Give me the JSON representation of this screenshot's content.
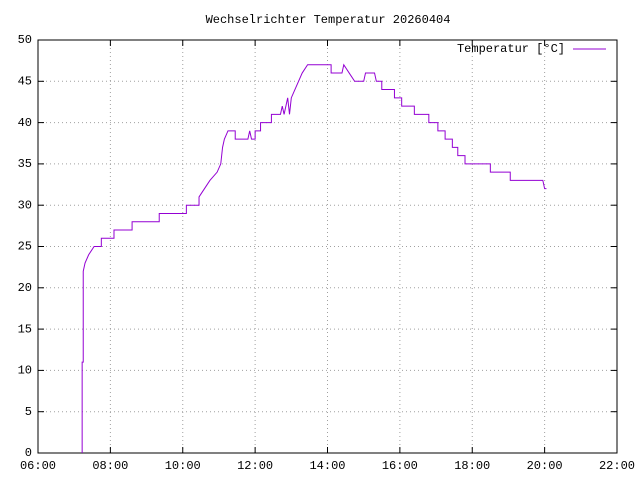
{
  "chart_data": {
    "type": "line",
    "title": "Wechselrichter Temperatur 20260404",
    "x": [
      7.22,
      7.22,
      7.25,
      7.25,
      7.3,
      7.4,
      7.55,
      7.75,
      7.75,
      8.1,
      8.1,
      8.6,
      8.6,
      9.35,
      9.35,
      10.1,
      10.1,
      10.45,
      10.45,
      10.6,
      10.75,
      10.95,
      11.05,
      11.1,
      11.15,
      11.25,
      11.45,
      11.45,
      11.8,
      11.85,
      11.9,
      12.0,
      12.0,
      12.15,
      12.15,
      12.45,
      12.45,
      12.7,
      12.75,
      12.8,
      12.9,
      12.95,
      13.0,
      13.1,
      13.2,
      13.3,
      13.45,
      14.1,
      14.1,
      14.4,
      14.45,
      14.6,
      14.75,
      15.0,
      15.05,
      15.3,
      15.35,
      15.5,
      15.5,
      15.85,
      15.85,
      16.05,
      16.05,
      16.4,
      16.4,
      16.8,
      16.8,
      17.05,
      17.05,
      17.25,
      17.25,
      17.45,
      17.45,
      17.6,
      17.6,
      17.8,
      17.8,
      18.5,
      18.5,
      19.05,
      19.05,
      19.95,
      20.0,
      20.05
    ],
    "series": [
      {
        "name": "Temperatur [°C]",
        "color": "#9400d3",
        "values": [
          0,
          11,
          11,
          22,
          23,
          24,
          25,
          25,
          26,
          26,
          27,
          27,
          28,
          28,
          29,
          29,
          30,
          30,
          31,
          32,
          33,
          34,
          35,
          37,
          38,
          39,
          39,
          38,
          38,
          39,
          38,
          38,
          39,
          39,
          40,
          40,
          41,
          41,
          42,
          41,
          43,
          41,
          43,
          44,
          45,
          46,
          47,
          47,
          46,
          46,
          47,
          46,
          45,
          45,
          46,
          46,
          45,
          45,
          44,
          44,
          43,
          43,
          42,
          42,
          41,
          41,
          40,
          40,
          39,
          39,
          38,
          38,
          37,
          37,
          36,
          36,
          35,
          35,
          34,
          34,
          33,
          33,
          32,
          32
        ]
      }
    ],
    "xlim": [
      6,
      22
    ],
    "xticks": [
      {
        "value": 6,
        "label": "06:00"
      },
      {
        "value": 8,
        "label": "08:00"
      },
      {
        "value": 10,
        "label": "10:00"
      },
      {
        "value": 12,
        "label": "12:00"
      },
      {
        "value": 14,
        "label": "14:00"
      },
      {
        "value": 16,
        "label": "16:00"
      },
      {
        "value": 18,
        "label": "18:00"
      },
      {
        "value": 20,
        "label": "20:00"
      },
      {
        "value": 22,
        "label": "22:00"
      }
    ],
    "ylim": [
      0,
      50
    ],
    "yticks": [
      0,
      5,
      10,
      15,
      20,
      25,
      30,
      35,
      40,
      45,
      50
    ],
    "grid": true,
    "legend": "top-right"
  }
}
